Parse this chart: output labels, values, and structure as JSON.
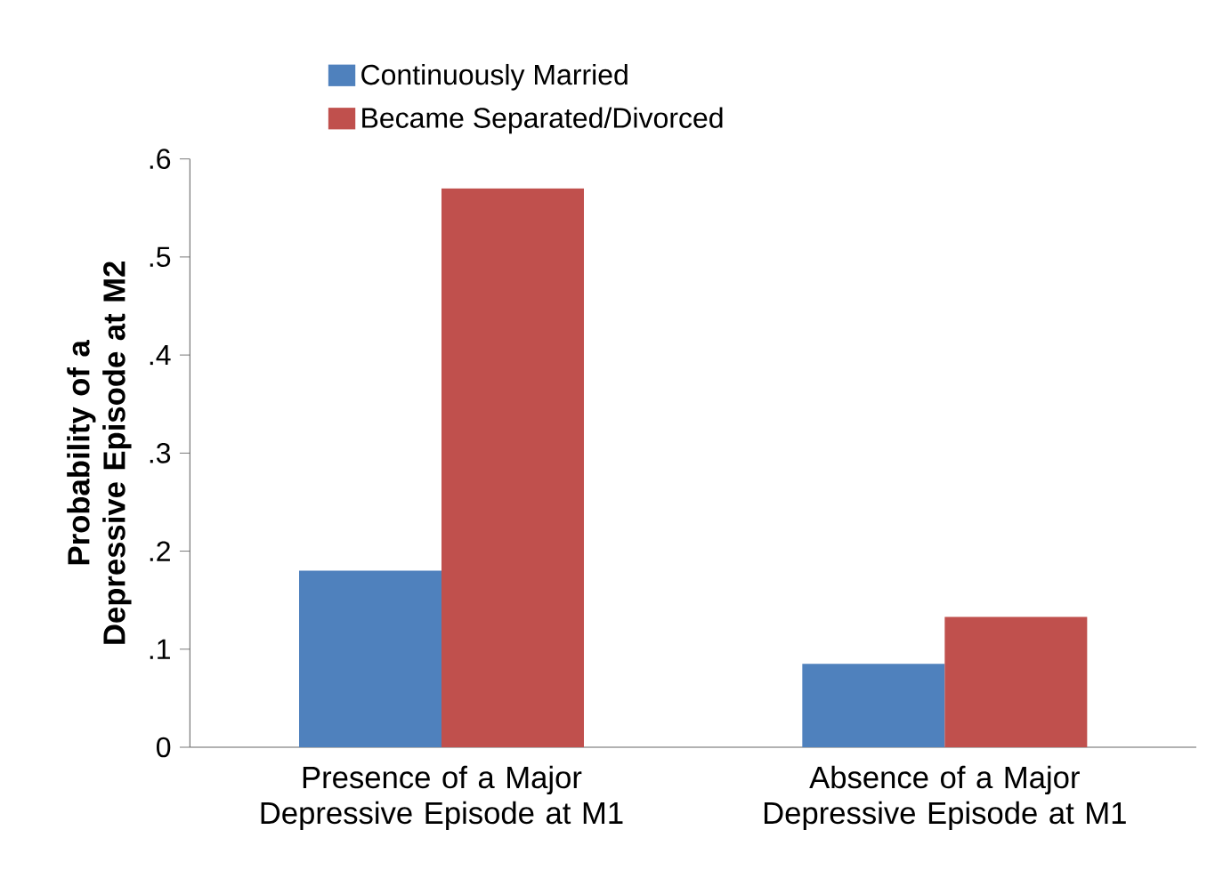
{
  "chart_data": {
    "type": "bar",
    "ylabel": "Probability of a Depressive Episode at M2",
    "categories": [
      "Presence of a Major Depressive Episode at M1",
      "Absence of a Major Depressive Episode at M1"
    ],
    "series": [
      {
        "name": "Continuously Married",
        "color": "#4f81bd",
        "values": [
          0.18,
          0.085
        ]
      },
      {
        "name": "Became Separated/Divorced",
        "color": "#c0504d",
        "values": [
          0.57,
          0.133
        ]
      }
    ],
    "ylim": [
      0,
      0.6
    ],
    "yticks": [
      0,
      {
        "value": 0.1,
        "label": ".1"
      },
      {
        "value": 0.2,
        "label": ".2"
      },
      {
        "value": 0.3,
        "label": ".3"
      },
      {
        "value": 0.4,
        "label": ".4"
      },
      {
        "value": 0.5,
        "label": ".5"
      },
      {
        "value": 0.6,
        "label": ".6"
      }
    ],
    "grid": false,
    "legend": "top"
  }
}
